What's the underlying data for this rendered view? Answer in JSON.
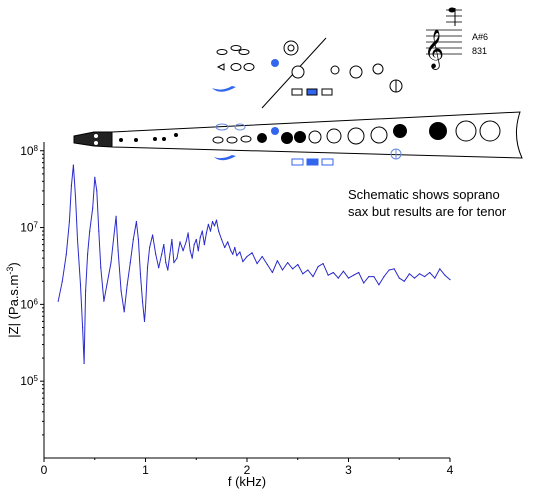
{
  "annotation": {
    "line1": "Schematic shows soprano",
    "line2": "sax but results are for tenor"
  },
  "fingering": {
    "note": "A#6",
    "frequency": "831"
  },
  "colors": {
    "curve": "#2a2acc",
    "key_blue": "#3366ee",
    "key_light_blue": "#6688dd",
    "axis": "#000000"
  },
  "chart_data": {
    "type": "line",
    "title": "",
    "xlabel": "f (kHz)",
    "ylabel": "|Z| (Pa.s.m-3)",
    "ylabel_parts": {
      "base": "|Z| (Pa.s.m",
      "exp": "-3",
      "close": ")"
    },
    "y_scale": "log",
    "xlim": [
      0,
      4
    ],
    "ylim": [
      10000,
      130000000
    ],
    "x_ticks": [
      0,
      1,
      2,
      3,
      4
    ],
    "x_tick_labels": [
      "0",
      "1",
      "2",
      "3",
      "4"
    ],
    "y_ticks": [
      100000,
      1000000,
      10000000,
      100000000
    ],
    "y_tick_labels": [
      {
        "base": "10",
        "exp": "5"
      },
      {
        "base": "10",
        "exp": "6"
      },
      {
        "base": "10",
        "exp": "7"
      },
      {
        "base": "10",
        "exp": "8"
      }
    ],
    "grid": false,
    "series": [
      {
        "x": [
          0.14,
          0.18,
          0.22,
          0.25,
          0.27,
          0.29,
          0.31,
          0.33,
          0.36,
          0.38,
          0.395,
          0.41,
          0.43,
          0.45,
          0.48,
          0.5,
          0.52,
          0.54,
          0.56,
          0.59,
          0.62,
          0.66,
          0.69,
          0.71,
          0.73,
          0.76,
          0.79,
          0.82,
          0.85,
          0.88,
          0.91,
          0.93,
          0.95,
          0.97,
          0.99,
          1.0,
          1.02,
          1.04,
          1.07,
          1.1,
          1.13,
          1.16,
          1.18,
          1.2,
          1.22,
          1.24,
          1.26,
          1.28,
          1.31,
          1.34,
          1.37,
          1.4,
          1.42,
          1.44,
          1.46,
          1.48,
          1.5,
          1.52,
          1.54,
          1.56,
          1.58,
          1.6,
          1.62,
          1.64,
          1.66,
          1.68,
          1.7,
          1.72,
          1.75,
          1.78,
          1.81,
          1.84,
          1.86,
          1.88,
          1.9,
          1.93,
          1.96,
          2.0,
          2.05,
          2.1,
          2.15,
          2.2,
          2.25,
          2.3,
          2.35,
          2.4,
          2.45,
          2.5,
          2.55,
          2.6,
          2.65,
          2.7,
          2.75,
          2.8,
          2.85,
          2.9,
          2.95,
          3.0,
          3.05,
          3.1,
          3.15,
          3.2,
          3.25,
          3.3,
          3.35,
          3.4,
          3.45,
          3.5,
          3.55,
          3.6,
          3.65,
          3.7,
          3.75,
          3.8,
          3.85,
          3.9,
          3.95,
          4.0
        ],
        "y": [
          1100000,
          2000000,
          4500000,
          12000000,
          35000000,
          65000000,
          25000000,
          7000000,
          1800000,
          500000,
          170000,
          1500000,
          4500000,
          9000000,
          18000000,
          45000000,
          30000000,
          9000000,
          3000000,
          1100000,
          1800000,
          3500000,
          8000000,
          14000000,
          5000000,
          1500000,
          800000,
          1800000,
          3500000,
          7000000,
          12000000,
          7000000,
          2500000,
          1100000,
          600000,
          900000,
          3000000,
          5500000,
          8000000,
          4500000,
          3000000,
          4500000,
          6000000,
          3500000,
          2800000,
          4500000,
          7000000,
          3500000,
          4000000,
          6500000,
          5000000,
          6500000,
          8500000,
          5000000,
          4000000,
          6000000,
          7000000,
          5000000,
          7500000,
          9000000,
          6000000,
          8500000,
          11000000,
          9000000,
          12000000,
          10500000,
          12500000,
          9000000,
          7000000,
          5500000,
          6500000,
          5000000,
          4500000,
          5500000,
          4300000,
          4800000,
          3600000,
          4200000,
          4700000,
          3400000,
          4200000,
          3300000,
          2600000,
          3700000,
          2800000,
          3500000,
          2900000,
          3300000,
          2500000,
          2800000,
          2300000,
          3100000,
          3400000,
          2400000,
          2600000,
          2200000,
          2700000,
          2200000,
          2400000,
          2600000,
          1900000,
          2300000,
          2300000,
          1800000,
          2300000,
          2800000,
          2900000,
          2200000,
          2000000,
          2500000,
          2200000,
          2500000,
          2300000,
          2600000,
          2200000,
          2900000,
          2400000,
          2100000
        ]
      }
    ]
  }
}
